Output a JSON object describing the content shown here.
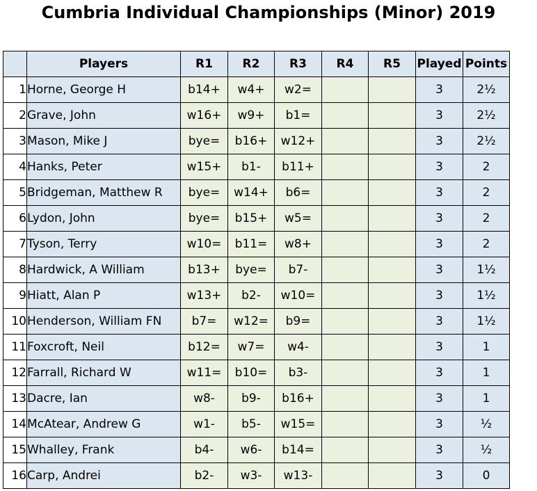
{
  "title": "Cumbria Individual Championships (Minor) 2019",
  "headers": {
    "players": "Players",
    "rounds": [
      "R1",
      "R2",
      "R3",
      "R4",
      "R5"
    ],
    "played": "Played",
    "points": "Points"
  },
  "rows": [
    {
      "num": "1",
      "name": "Horne, George H",
      "r": [
        "b14+",
        "w4+",
        "w2=",
        "",
        ""
      ],
      "played": "3",
      "points": "2½"
    },
    {
      "num": "2",
      "name": "Grave, John",
      "r": [
        "w16+",
        "w9+",
        "b1=",
        "",
        ""
      ],
      "played": "3",
      "points": "2½"
    },
    {
      "num": "3",
      "name": "Mason, Mike J",
      "r": [
        "bye=",
        "b16+",
        "w12+",
        "",
        ""
      ],
      "played": "3",
      "points": "2½"
    },
    {
      "num": "4",
      "name": "Hanks, Peter",
      "r": [
        "w15+",
        "b1-",
        "b11+",
        "",
        ""
      ],
      "played": "3",
      "points": "2"
    },
    {
      "num": "5",
      "name": "Bridgeman, Matthew R",
      "r": [
        "bye=",
        "w14+",
        "b6=",
        "",
        ""
      ],
      "played": "3",
      "points": "2"
    },
    {
      "num": "6",
      "name": "Lydon, John",
      "r": [
        "bye=",
        "b15+",
        "w5=",
        "",
        ""
      ],
      "played": "3",
      "points": "2"
    },
    {
      "num": "7",
      "name": "Tyson, Terry",
      "r": [
        "w10=",
        "b11=",
        "w8+",
        "",
        ""
      ],
      "played": "3",
      "points": "2"
    },
    {
      "num": "8",
      "name": "Hardwick, A William",
      "r": [
        "b13+",
        "bye=",
        "b7-",
        "",
        ""
      ],
      "played": "3",
      "points": "1½"
    },
    {
      "num": "9",
      "name": "Hiatt, Alan P",
      "r": [
        "w13+",
        "b2-",
        "w10=",
        "",
        ""
      ],
      "played": "3",
      "points": "1½"
    },
    {
      "num": "10",
      "name": "Henderson, William FN",
      "r": [
        "b7=",
        "w12=",
        "b9=",
        "",
        ""
      ],
      "played": "3",
      "points": "1½"
    },
    {
      "num": "11",
      "name": "Foxcroft, Neil",
      "r": [
        "b12=",
        "w7=",
        "w4-",
        "",
        ""
      ],
      "played": "3",
      "points": "1"
    },
    {
      "num": "12",
      "name": "Farrall, Richard W",
      "r": [
        "w11=",
        "b10=",
        "b3-",
        "",
        ""
      ],
      "played": "3",
      "points": "1"
    },
    {
      "num": "13",
      "name": "Dacre, Ian",
      "r": [
        "w8-",
        "b9-",
        "b16+",
        "",
        ""
      ],
      "played": "3",
      "points": "1"
    },
    {
      "num": "14",
      "name": "McAtear, Andrew G",
      "r": [
        "w1-",
        "b5-",
        "w15=",
        "",
        ""
      ],
      "played": "3",
      "points": "½"
    },
    {
      "num": "15",
      "name": "Whalley, Frank",
      "r": [
        "b4-",
        "w6-",
        "b14=",
        "",
        ""
      ],
      "played": "3",
      "points": "½"
    },
    {
      "num": "16",
      "name": "Carp, Andrei",
      "r": [
        "b2-",
        "w3-",
        "w13-",
        "",
        ""
      ],
      "played": "3",
      "points": "0"
    }
  ]
}
